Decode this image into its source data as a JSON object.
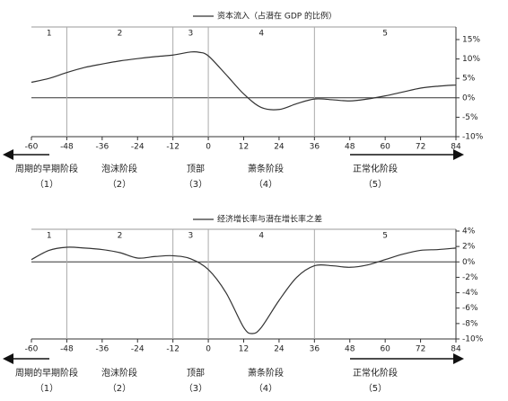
{
  "chart_data": [
    {
      "type": "line",
      "legend": "top",
      "x": [
        -60,
        -54,
        -48,
        -42,
        -36,
        -30,
        -24,
        -18,
        -12,
        -6,
        -3,
        0,
        6,
        12,
        18,
        24,
        30,
        36,
        42,
        48,
        54,
        60,
        66,
        72,
        78,
        84
      ],
      "series": [
        {
          "name": "资本流入（占潜在 GDP 的比例）",
          "color": "#333333",
          "values": [
            4,
            5,
            6.5,
            7.8,
            8.7,
            9.5,
            10.1,
            10.6,
            11,
            11.8,
            11.7,
            10.8,
            6,
            1,
            -2.5,
            -3,
            -1.5,
            -0.3,
            -0.5,
            -0.8,
            -0.3,
            0.5,
            1.5,
            2.5,
            3,
            3.3
          ]
        }
      ],
      "xlim": [
        -60,
        84
      ],
      "xticks": [
        -60,
        -48,
        -36,
        -24,
        -12,
        0,
        12,
        24,
        36,
        48,
        60,
        72,
        84
      ],
      "ylim": [
        -10,
        15
      ],
      "yticks": [
        {
          "value": 15,
          "label": "15%"
        },
        {
          "value": 10,
          "label": "10%"
        },
        {
          "value": 5,
          "label": "5%"
        },
        {
          "value": 0,
          "label": "0%"
        },
        {
          "value": -5,
          "label": "-5%"
        },
        {
          "value": -10,
          "label": "-10%"
        }
      ],
      "region_boundaries": [
        -48,
        -12,
        0,
        36
      ],
      "region_labels": [
        "1",
        "2",
        "3",
        "4",
        "5"
      ],
      "phases": [
        {
          "label": "周期的早期阶段",
          "number": "（1）"
        },
        {
          "label": "泡沫阶段",
          "number": "（2）"
        },
        {
          "label": "顶部",
          "number": "（3）"
        },
        {
          "label": "萧条阶段",
          "number": "（4）"
        },
        {
          "label": "正常化阶段",
          "number": "（5）"
        }
      ]
    },
    {
      "type": "line",
      "legend": "top",
      "x": [
        -60,
        -54,
        -48,
        -42,
        -36,
        -30,
        -24,
        -18,
        -12,
        -6,
        0,
        6,
        12,
        15,
        18,
        24,
        30,
        36,
        42,
        48,
        54,
        60,
        66,
        72,
        78,
        84
      ],
      "series": [
        {
          "name": "经济增长率与潜在增长率之差",
          "color": "#333333",
          "values": [
            0.3,
            1.5,
            1.9,
            1.8,
            1.6,
            1.2,
            0.5,
            0.7,
            0.8,
            0.4,
            -1,
            -4,
            -8.5,
            -9.3,
            -8.5,
            -5,
            -2,
            -0.5,
            -0.5,
            -0.7,
            -0.4,
            0.3,
            1,
            1.5,
            1.6,
            1.8
          ]
        }
      ],
      "xlim": [
        -60,
        84
      ],
      "xticks": [
        -60,
        -48,
        -36,
        -24,
        -12,
        0,
        12,
        24,
        36,
        48,
        60,
        72,
        84
      ],
      "ylim": [
        -10,
        4
      ],
      "yticks": [
        {
          "value": 4,
          "label": "4%"
        },
        {
          "value": 2,
          "label": "2%"
        },
        {
          "value": 0,
          "label": "0%"
        },
        {
          "value": -2,
          "label": "-2%"
        },
        {
          "value": -4,
          "label": "-4%"
        },
        {
          "value": -6,
          "label": "-6%"
        },
        {
          "value": -8,
          "label": "-8%"
        },
        {
          "value": -10,
          "label": "-10%"
        }
      ],
      "region_boundaries": [
        -48,
        -12,
        0,
        36
      ],
      "region_labels": [
        "1",
        "2",
        "3",
        "4",
        "5"
      ],
      "phases": [
        {
          "label": "周期的早期阶段",
          "number": "（1）"
        },
        {
          "label": "泡沫阶段",
          "number": "（2）"
        },
        {
          "label": "顶部",
          "number": "（3）"
        },
        {
          "label": "萧条阶段",
          "number": "（4）"
        },
        {
          "label": "正常化阶段",
          "number": "（5）"
        }
      ]
    }
  ]
}
